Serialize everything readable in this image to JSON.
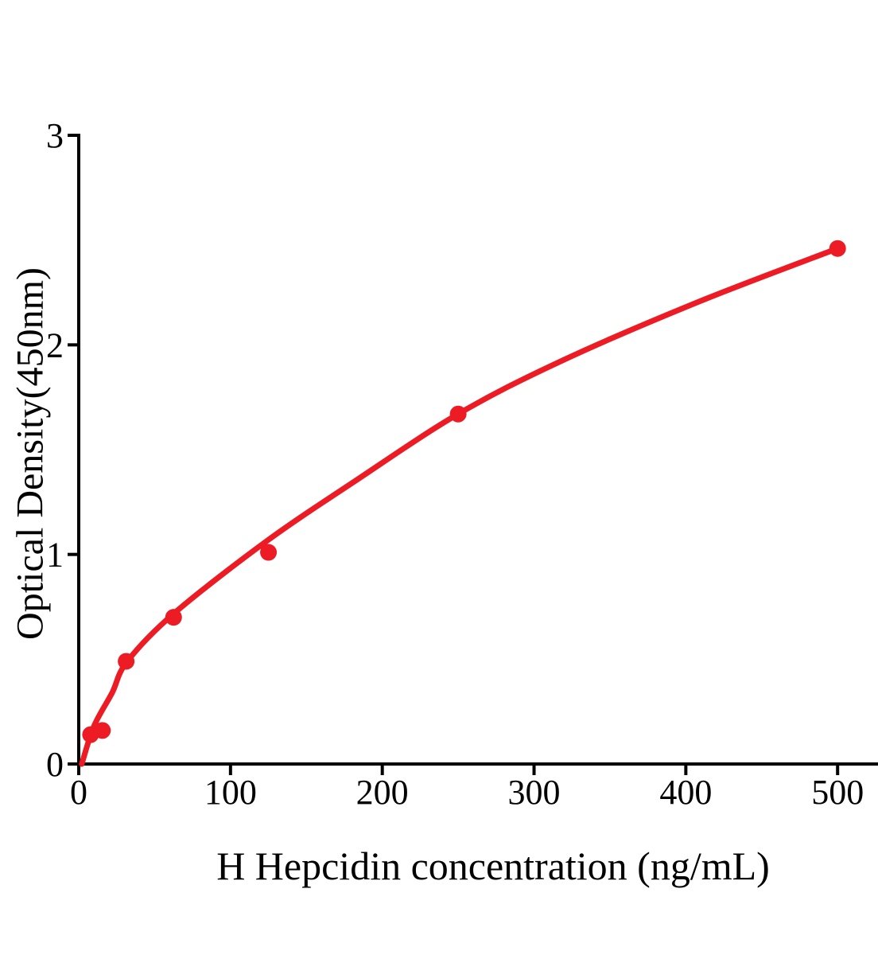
{
  "figure": {
    "background": "#ffffff"
  },
  "chart_data": {
    "type": "scatter",
    "title": "",
    "xlabel": "H Hepcidin concentration (ng/mL)",
    "ylabel": "Optical Density(450nm)",
    "xlim": [
      0,
      527
    ],
    "ylim": [
      0,
      3
    ],
    "x_ticks": [
      0,
      100,
      200,
      300,
      400,
      500
    ],
    "y_ticks": [
      0,
      1,
      2,
      3
    ],
    "grid": false,
    "legend": "none",
    "points": [
      {
        "x": 7.8,
        "y": 0.14
      },
      {
        "x": 15.6,
        "y": 0.16
      },
      {
        "x": 31.25,
        "y": 0.49
      },
      {
        "x": 62.5,
        "y": 0.7
      },
      {
        "x": 125,
        "y": 1.01
      },
      {
        "x": 250,
        "y": 1.67
      },
      {
        "x": 500,
        "y": 2.46
      }
    ],
    "curve_samples": [
      [
        2,
        0.0
      ],
      [
        10,
        0.18
      ],
      [
        22,
        0.34
      ],
      [
        32,
        0.49
      ],
      [
        63,
        0.72
      ],
      [
        125,
        1.07
      ],
      [
        180,
        1.34
      ],
      [
        250,
        1.67
      ],
      [
        320,
        1.93
      ],
      [
        410,
        2.21
      ],
      [
        500,
        2.46
      ]
    ],
    "colors": {
      "series": "#ec1b24",
      "axis": "#000000",
      "text": "#000000"
    }
  }
}
